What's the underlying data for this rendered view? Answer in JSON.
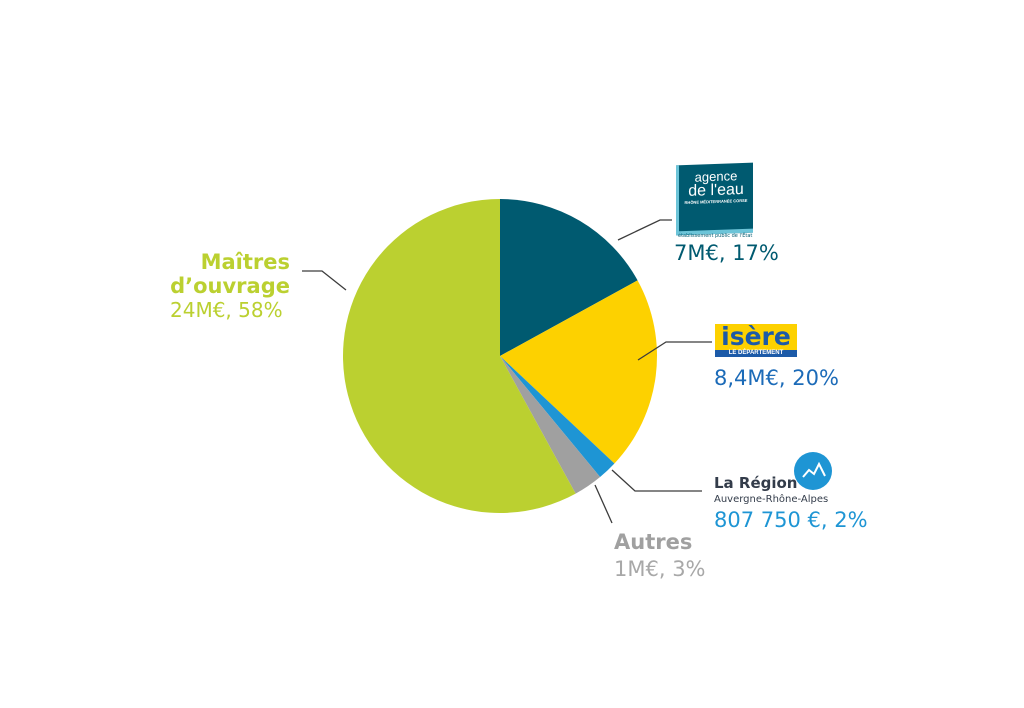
{
  "chart_data": {
    "type": "pie",
    "start": "top",
    "direction": "clockwise",
    "slices": [
      {
        "name": "Agence de l'eau Rhône Méditerranée Corse",
        "value_label": "7M€, 17%",
        "percent": 17,
        "color": "#005a70"
      },
      {
        "name": "Isère le Département",
        "value_label": "8,4M€, 20%",
        "percent": 20,
        "color": "#fdd100"
      },
      {
        "name": "La Région Auvergne-Rhône-Alpes",
        "value_label": "807 750 €, 2%",
        "percent": 2,
        "color": "#1e95d4"
      },
      {
        "name": "Autres",
        "value_label": "1M€, 3%",
        "percent": 3,
        "color": "#a0a0a0"
      },
      {
        "name": "Maîtres d'ouvrage",
        "value_label": "24M€, 58%",
        "percent": 58,
        "color": "#bbd030"
      }
    ]
  },
  "labels": {
    "maitres_line1": "Maîtres",
    "maitres_line2": "d’ouvrage",
    "maitres_value": "24M€, 58%",
    "agence_logo_line1": "agence",
    "agence_logo_line2": "de l'eau",
    "agence_logo_line3": "RHÔNE MÉDITERRANÉE CORSE",
    "agence_logo_line4": "établissement public de l'État",
    "agence_value": "7M€, 17%",
    "isere_logo": "isère",
    "isere_logo_sub": "LE DÉPARTEMENT",
    "isere_value": "8,4M€, 20%",
    "region_name": "La Région",
    "region_sub": "Auvergne-Rhône-Alpes",
    "region_value": "807 750 €, 2%",
    "autres_name": "Autres",
    "autres_value": "1M€, 3%"
  }
}
